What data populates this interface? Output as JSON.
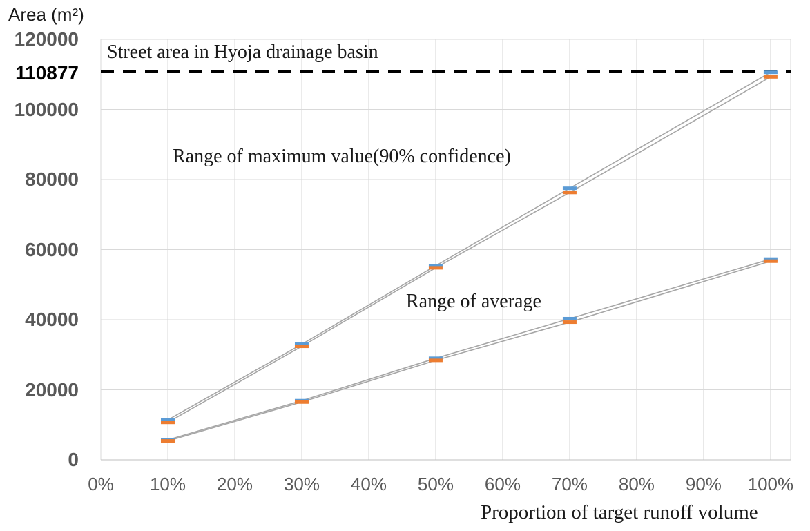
{
  "chart_data": {
    "type": "line",
    "title": "",
    "y_axis_title": "Area (m²)",
    "x_axis_title": "Proportion of target runoff volume",
    "grid": true,
    "legend": "none",
    "xlim": [
      0,
      103
    ],
    "ylim": [
      0,
      120000
    ],
    "x_tick_values": [
      0,
      10,
      20,
      30,
      40,
      50,
      60,
      70,
      80,
      90,
      100
    ],
    "x_tick_labels": [
      "0%",
      "10%",
      "20%",
      "30%",
      "40%",
      "50%",
      "60%",
      "70%",
      "80%",
      "90%",
      "100%"
    ],
    "y_tick_values": [
      0,
      20000,
      40000,
      60000,
      80000,
      100000,
      120000
    ],
    "y_tick_labels": [
      "0",
      "20000",
      "40000",
      "60000",
      "80000",
      "100000",
      "120000"
    ],
    "reference_line": {
      "text": "Street area in Hyoja drainage basin",
      "value": 110877,
      "axis_label": "110877",
      "style": "dashed",
      "color": "#000000"
    },
    "annotations": [
      {
        "id": "max-range-label",
        "text": "Range of maximum value(90% confidence)"
      },
      {
        "id": "avg-range-label",
        "text": "Range of average"
      }
    ],
    "x": [
      10,
      30,
      50,
      70,
      100
    ],
    "series": [
      {
        "name": "maximum-range-upper",
        "marker": "dash",
        "marker_color": "#5B9BD5",
        "line_color": "#A6A6A6",
        "values": [
          11400,
          33000,
          55400,
          77500,
          110600
        ]
      },
      {
        "name": "maximum-range-lower",
        "marker": "dash",
        "marker_color": "#ED7D31",
        "line_color": "#A6A6A6",
        "values": [
          10700,
          32400,
          54800,
          76300,
          109300
        ]
      },
      {
        "name": "average-range-upper",
        "marker": "dash",
        "marker_color": "#5B9BD5",
        "line_color": "#A6A6A6",
        "values": [
          5700,
          16900,
          29000,
          40300,
          57300
        ]
      },
      {
        "name": "average-range-lower",
        "marker": "dash",
        "marker_color": "#ED7D31",
        "line_color": "#A6A6A6",
        "values": [
          5400,
          16500,
          28400,
          39300,
          56700
        ]
      }
    ]
  },
  "colors": {
    "grid": "#D9D9D9",
    "axis": "#BFBFBF",
    "tick_text": "#595959",
    "reference": "#000000",
    "marker_blue": "#5B9BD5",
    "marker_orange": "#ED7D31",
    "range_line": "#A6A6A6"
  }
}
